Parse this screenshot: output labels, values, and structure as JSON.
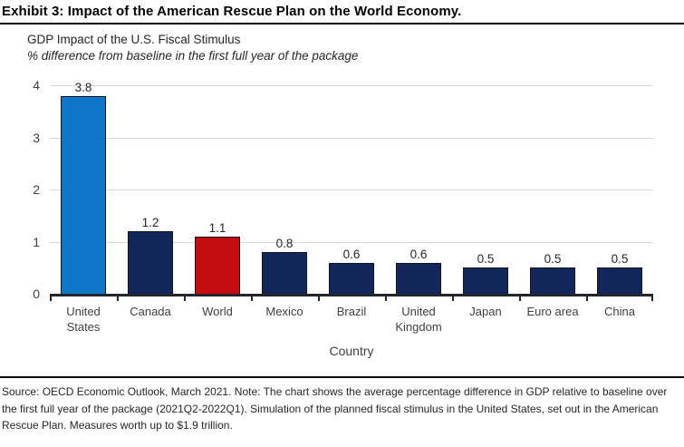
{
  "exhibit": {
    "title": "Exhibit 3: Impact of the American Rescue Plan on the World Economy."
  },
  "chart_data": {
    "type": "bar",
    "title": "GDP Impact of the U.S. Fiscal Stimulus",
    "subtitle": "% difference from baseline in the first full year of the package",
    "xlabel": "Country",
    "ylabel": "",
    "ylim": [
      0,
      4
    ],
    "yticks": [
      0,
      1,
      2,
      3,
      4
    ],
    "grid": true,
    "legend": "none",
    "categories": [
      "United States",
      "Canada",
      "World",
      "Mexico",
      "Brazil",
      "United Kingdom",
      "Japan",
      "Euro area",
      "China"
    ],
    "values": [
      3.8,
      1.2,
      1.1,
      0.8,
      0.6,
      0.6,
      0.5,
      0.5,
      0.5
    ],
    "bar_colors": [
      "#1076c8",
      "#13265b",
      "#c40d11",
      "#13265b",
      "#13265b",
      "#13265b",
      "#13265b",
      "#13265b",
      "#13265b"
    ],
    "colors": {
      "highlight_blue": "#1076c8",
      "default_navy": "#13265b",
      "world_red": "#c40d11",
      "gridline": "#d9d9d9",
      "axis": "#23262e"
    }
  },
  "footer": {
    "note": "Source: OECD Economic Outlook, March 2021. Note: The chart shows the average percentage difference in GDP relative to baseline over the first full year of the package (2021Q2-2022Q1). Simulation of the planned fiscal stimulus in the United States, set out in the American Rescue Plan. Measures worth up to $1.9 trillion."
  }
}
